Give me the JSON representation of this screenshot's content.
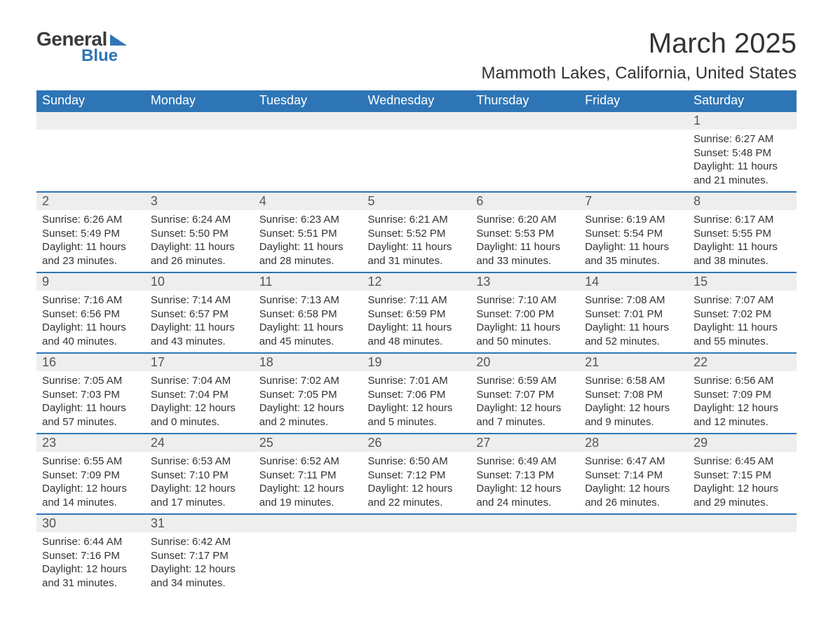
{
  "logo": {
    "text1": "General",
    "text2": "Blue",
    "mark_color": "#2e75b6"
  },
  "title": "March 2025",
  "location": "Mammoth Lakes, California, United States",
  "colors": {
    "header_bg": "#2e75b6",
    "header_text": "#ffffff",
    "daynum_bg": "#eeeeee",
    "row_border": "#2e75b6",
    "text": "#333333",
    "page_bg": "#ffffff"
  },
  "fonts": {
    "title_pt": 40,
    "location_pt": 24,
    "dayheader_pt": 18,
    "daynum_pt": 18,
    "info_pt": 15
  },
  "day_headers": [
    "Sunday",
    "Monday",
    "Tuesday",
    "Wednesday",
    "Thursday",
    "Friday",
    "Saturday"
  ],
  "weeks": [
    [
      null,
      null,
      null,
      null,
      null,
      null,
      {
        "n": "1",
        "sunrise": "Sunrise: 6:27 AM",
        "sunset": "Sunset: 5:48 PM",
        "d1": "Daylight: 11 hours",
        "d2": "and 21 minutes."
      }
    ],
    [
      {
        "n": "2",
        "sunrise": "Sunrise: 6:26 AM",
        "sunset": "Sunset: 5:49 PM",
        "d1": "Daylight: 11 hours",
        "d2": "and 23 minutes."
      },
      {
        "n": "3",
        "sunrise": "Sunrise: 6:24 AM",
        "sunset": "Sunset: 5:50 PM",
        "d1": "Daylight: 11 hours",
        "d2": "and 26 minutes."
      },
      {
        "n": "4",
        "sunrise": "Sunrise: 6:23 AM",
        "sunset": "Sunset: 5:51 PM",
        "d1": "Daylight: 11 hours",
        "d2": "and 28 minutes."
      },
      {
        "n": "5",
        "sunrise": "Sunrise: 6:21 AM",
        "sunset": "Sunset: 5:52 PM",
        "d1": "Daylight: 11 hours",
        "d2": "and 31 minutes."
      },
      {
        "n": "6",
        "sunrise": "Sunrise: 6:20 AM",
        "sunset": "Sunset: 5:53 PM",
        "d1": "Daylight: 11 hours",
        "d2": "and 33 minutes."
      },
      {
        "n": "7",
        "sunrise": "Sunrise: 6:19 AM",
        "sunset": "Sunset: 5:54 PM",
        "d1": "Daylight: 11 hours",
        "d2": "and 35 minutes."
      },
      {
        "n": "8",
        "sunrise": "Sunrise: 6:17 AM",
        "sunset": "Sunset: 5:55 PM",
        "d1": "Daylight: 11 hours",
        "d2": "and 38 minutes."
      }
    ],
    [
      {
        "n": "9",
        "sunrise": "Sunrise: 7:16 AM",
        "sunset": "Sunset: 6:56 PM",
        "d1": "Daylight: 11 hours",
        "d2": "and 40 minutes."
      },
      {
        "n": "10",
        "sunrise": "Sunrise: 7:14 AM",
        "sunset": "Sunset: 6:57 PM",
        "d1": "Daylight: 11 hours",
        "d2": "and 43 minutes."
      },
      {
        "n": "11",
        "sunrise": "Sunrise: 7:13 AM",
        "sunset": "Sunset: 6:58 PM",
        "d1": "Daylight: 11 hours",
        "d2": "and 45 minutes."
      },
      {
        "n": "12",
        "sunrise": "Sunrise: 7:11 AM",
        "sunset": "Sunset: 6:59 PM",
        "d1": "Daylight: 11 hours",
        "d2": "and 48 minutes."
      },
      {
        "n": "13",
        "sunrise": "Sunrise: 7:10 AM",
        "sunset": "Sunset: 7:00 PM",
        "d1": "Daylight: 11 hours",
        "d2": "and 50 minutes."
      },
      {
        "n": "14",
        "sunrise": "Sunrise: 7:08 AM",
        "sunset": "Sunset: 7:01 PM",
        "d1": "Daylight: 11 hours",
        "d2": "and 52 minutes."
      },
      {
        "n": "15",
        "sunrise": "Sunrise: 7:07 AM",
        "sunset": "Sunset: 7:02 PM",
        "d1": "Daylight: 11 hours",
        "d2": "and 55 minutes."
      }
    ],
    [
      {
        "n": "16",
        "sunrise": "Sunrise: 7:05 AM",
        "sunset": "Sunset: 7:03 PM",
        "d1": "Daylight: 11 hours",
        "d2": "and 57 minutes."
      },
      {
        "n": "17",
        "sunrise": "Sunrise: 7:04 AM",
        "sunset": "Sunset: 7:04 PM",
        "d1": "Daylight: 12 hours",
        "d2": "and 0 minutes."
      },
      {
        "n": "18",
        "sunrise": "Sunrise: 7:02 AM",
        "sunset": "Sunset: 7:05 PM",
        "d1": "Daylight: 12 hours",
        "d2": "and 2 minutes."
      },
      {
        "n": "19",
        "sunrise": "Sunrise: 7:01 AM",
        "sunset": "Sunset: 7:06 PM",
        "d1": "Daylight: 12 hours",
        "d2": "and 5 minutes."
      },
      {
        "n": "20",
        "sunrise": "Sunrise: 6:59 AM",
        "sunset": "Sunset: 7:07 PM",
        "d1": "Daylight: 12 hours",
        "d2": "and 7 minutes."
      },
      {
        "n": "21",
        "sunrise": "Sunrise: 6:58 AM",
        "sunset": "Sunset: 7:08 PM",
        "d1": "Daylight: 12 hours",
        "d2": "and 9 minutes."
      },
      {
        "n": "22",
        "sunrise": "Sunrise: 6:56 AM",
        "sunset": "Sunset: 7:09 PM",
        "d1": "Daylight: 12 hours",
        "d2": "and 12 minutes."
      }
    ],
    [
      {
        "n": "23",
        "sunrise": "Sunrise: 6:55 AM",
        "sunset": "Sunset: 7:09 PM",
        "d1": "Daylight: 12 hours",
        "d2": "and 14 minutes."
      },
      {
        "n": "24",
        "sunrise": "Sunrise: 6:53 AM",
        "sunset": "Sunset: 7:10 PM",
        "d1": "Daylight: 12 hours",
        "d2": "and 17 minutes."
      },
      {
        "n": "25",
        "sunrise": "Sunrise: 6:52 AM",
        "sunset": "Sunset: 7:11 PM",
        "d1": "Daylight: 12 hours",
        "d2": "and 19 minutes."
      },
      {
        "n": "26",
        "sunrise": "Sunrise: 6:50 AM",
        "sunset": "Sunset: 7:12 PM",
        "d1": "Daylight: 12 hours",
        "d2": "and 22 minutes."
      },
      {
        "n": "27",
        "sunrise": "Sunrise: 6:49 AM",
        "sunset": "Sunset: 7:13 PM",
        "d1": "Daylight: 12 hours",
        "d2": "and 24 minutes."
      },
      {
        "n": "28",
        "sunrise": "Sunrise: 6:47 AM",
        "sunset": "Sunset: 7:14 PM",
        "d1": "Daylight: 12 hours",
        "d2": "and 26 minutes."
      },
      {
        "n": "29",
        "sunrise": "Sunrise: 6:45 AM",
        "sunset": "Sunset: 7:15 PM",
        "d1": "Daylight: 12 hours",
        "d2": "and 29 minutes."
      }
    ],
    [
      {
        "n": "30",
        "sunrise": "Sunrise: 6:44 AM",
        "sunset": "Sunset: 7:16 PM",
        "d1": "Daylight: 12 hours",
        "d2": "and 31 minutes."
      },
      {
        "n": "31",
        "sunrise": "Sunrise: 6:42 AM",
        "sunset": "Sunset: 7:17 PM",
        "d1": "Daylight: 12 hours",
        "d2": "and 34 minutes."
      },
      null,
      null,
      null,
      null,
      null
    ]
  ]
}
